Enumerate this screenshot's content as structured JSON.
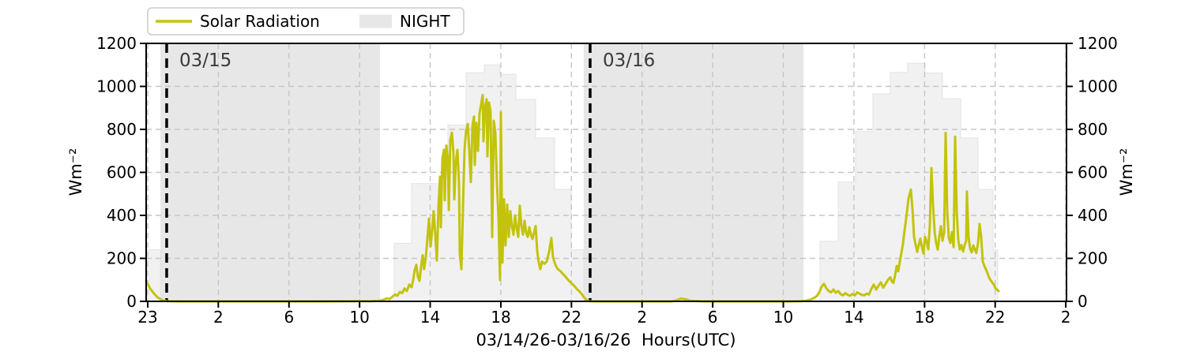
{
  "colors": {
    "radiation_line": "#c3c30c",
    "night_fill": "#e7e7e7",
    "envelope_fill": "#f1f1f1",
    "envelope_edge": "#e3e3e3",
    "grid": "#c6c6c6",
    "frame": "#000000",
    "vline": "#000000",
    "day_label_text": "#3a3a3a",
    "legend_border": "#cbcbcb",
    "background": "#ffffff"
  },
  "legend": {
    "items": [
      {
        "label": "Solar Radiation",
        "type": "line",
        "color": "#c3c30c"
      },
      {
        "label": "NIGHT",
        "type": "patch",
        "color": "#e7e7e7"
      }
    ]
  },
  "chart_data": {
    "type": "line",
    "title": "",
    "xlabel": "03/14/26-03/16/26  Hours(UTC)",
    "ylabel": "Wm⁻²",
    "ylabel_right": "Wm⁻²",
    "ylim": [
      0,
      1200
    ],
    "yticks": [
      0,
      200,
      400,
      600,
      800,
      1000,
      1200
    ],
    "x_unit": "fraction of x-axis width (0 = left edge, 1 = right edge); tick labels are hours UTC from 03/14/26 23:00 to 03/17/26 02:00",
    "grid": "dashed, both axes",
    "legend_position": "upper left, outside axes",
    "xticks": [
      {
        "f": 0.0017,
        "label": "23"
      },
      {
        "f": 0.0784,
        "label": "2"
      },
      {
        "f": 0.1552,
        "label": "6"
      },
      {
        "f": 0.2319,
        "label": "10"
      },
      {
        "f": 0.3086,
        "label": "14"
      },
      {
        "f": 0.3854,
        "label": "18"
      },
      {
        "f": 0.4621,
        "label": "22"
      },
      {
        "f": 0.5388,
        "label": "2"
      },
      {
        "f": 0.6156,
        "label": "6"
      },
      {
        "f": 0.6923,
        "label": "10"
      },
      {
        "f": 0.769,
        "label": "14"
      },
      {
        "f": 0.8458,
        "label": "18"
      },
      {
        "f": 0.9225,
        "label": "22"
      },
      {
        "f": 0.9992,
        "label": "2"
      }
    ],
    "night_regions": [
      {
        "f0": 0.0155,
        "f1": 0.2541
      },
      {
        "f0": 0.4755,
        "f1": 0.7142
      }
    ],
    "date_markers": [
      {
        "f": 0.0223,
        "label": "03/15"
      },
      {
        "f": 0.4824,
        "label": "03/16"
      }
    ],
    "series": [
      {
        "name": "clear-sky-envelope",
        "style": "stepped area, light gray, hourly values in Wm⁻²",
        "segments": [
          [
            [
              0.0,
              0.0155,
              240
            ]
          ],
          [
            [
              0.2695,
              0.2884,
              270
            ],
            [
              0.2884,
              0.3279,
              548
            ],
            [
              0.3279,
              0.3476,
              820
            ],
            [
              0.3476,
              0.3674,
              1063
            ],
            [
              0.3674,
              0.3845,
              1100
            ],
            [
              0.3845,
              0.4017,
              1056
            ],
            [
              0.4017,
              0.4232,
              939
            ],
            [
              0.4232,
              0.4438,
              760
            ],
            [
              0.4438,
              0.4618,
              521
            ],
            [
              0.4618,
              0.4755,
              240
            ]
          ],
          [
            [
              0.7322,
              0.7519,
              280
            ],
            [
              0.7519,
              0.7708,
              555
            ],
            [
              0.7708,
              0.7897,
              790
            ],
            [
              0.7897,
              0.8086,
              965
            ],
            [
              0.8086,
              0.8274,
              1065
            ],
            [
              0.8274,
              0.8463,
              1108
            ],
            [
              0.8463,
              0.8652,
              1062
            ],
            [
              0.8652,
              0.885,
              943
            ],
            [
              0.885,
              0.9039,
              760
            ],
            [
              0.9039,
              0.9202,
              521
            ],
            [
              0.9202,
              0.9253,
              240
            ]
          ]
        ]
      },
      {
        "name": "Solar Radiation",
        "style": "line, Wm⁻², points are [x-fraction, value]",
        "points": [
          [
            0.0,
            95
          ],
          [
            0.0043,
            60
          ],
          [
            0.0086,
            36
          ],
          [
            0.0129,
            17
          ],
          [
            0.0172,
            6
          ],
          [
            0.0223,
            1
          ],
          [
            0.0386,
            0
          ],
          [
            0.0987,
            0
          ],
          [
            0.1845,
            0
          ],
          [
            0.2446,
            1
          ],
          [
            0.2532,
            3
          ],
          [
            0.2584,
            8
          ],
          [
            0.2618,
            14
          ],
          [
            0.2644,
            10
          ],
          [
            0.267,
            20
          ],
          [
            0.2704,
            32
          ],
          [
            0.273,
            26
          ],
          [
            0.2756,
            44
          ],
          [
            0.2782,
            38
          ],
          [
            0.2807,
            60
          ],
          [
            0.2833,
            48
          ],
          [
            0.2859,
            78
          ],
          [
            0.2884,
            66
          ],
          [
            0.2901,
            100
          ],
          [
            0.2918,
            145
          ],
          [
            0.2936,
            170
          ],
          [
            0.2953,
            115
          ],
          [
            0.297,
            95
          ],
          [
            0.2987,
            160
          ],
          [
            0.3004,
            215
          ],
          [
            0.3021,
            150
          ],
          [
            0.3039,
            205
          ],
          [
            0.3056,
            290
          ],
          [
            0.3073,
            385
          ],
          [
            0.309,
            255
          ],
          [
            0.3107,
            330
          ],
          [
            0.3124,
            420
          ],
          [
            0.3142,
            310
          ],
          [
            0.3159,
            190
          ],
          [
            0.3176,
            440
          ],
          [
            0.3193,
            580
          ],
          [
            0.3202,
            345
          ],
          [
            0.3219,
            665
          ],
          [
            0.3236,
            705
          ],
          [
            0.3245,
            470
          ],
          [
            0.3262,
            725
          ],
          [
            0.3279,
            655
          ],
          [
            0.3288,
            425
          ],
          [
            0.3305,
            750
          ],
          [
            0.3322,
            785
          ],
          [
            0.3339,
            690
          ],
          [
            0.3348,
            475
          ],
          [
            0.3365,
            645
          ],
          [
            0.3382,
            705
          ],
          [
            0.3399,
            555
          ],
          [
            0.3408,
            225
          ],
          [
            0.3425,
            150
          ],
          [
            0.3442,
            430
          ],
          [
            0.3459,
            705
          ],
          [
            0.3476,
            795
          ],
          [
            0.3494,
            825
          ],
          [
            0.3511,
            700
          ],
          [
            0.3528,
            555
          ],
          [
            0.3545,
            815
          ],
          [
            0.3562,
            860
          ],
          [
            0.3571,
            635
          ],
          [
            0.3588,
            830
          ],
          [
            0.3605,
            700
          ],
          [
            0.3622,
            875
          ],
          [
            0.3639,
            915
          ],
          [
            0.3657,
            960
          ],
          [
            0.3665,
            745
          ],
          [
            0.3682,
            905
          ],
          [
            0.37,
            940
          ],
          [
            0.3708,
            675
          ],
          [
            0.3725,
            925
          ],
          [
            0.3742,
            885
          ],
          [
            0.376,
            300
          ],
          [
            0.3777,
            840
          ],
          [
            0.3794,
            785
          ],
          [
            0.3811,
            555
          ],
          [
            0.3828,
            385
          ],
          [
            0.3845,
            100
          ],
          [
            0.3854,
            880
          ],
          [
            0.3871,
            180
          ],
          [
            0.3888,
            475
          ],
          [
            0.3905,
            260
          ],
          [
            0.3923,
            450
          ],
          [
            0.394,
            300
          ],
          [
            0.3957,
            420
          ],
          [
            0.3974,
            350
          ],
          [
            0.3991,
            310
          ],
          [
            0.4009,
            400
          ],
          [
            0.4026,
            340
          ],
          [
            0.4043,
            300
          ],
          [
            0.406,
            445
          ],
          [
            0.4077,
            350
          ],
          [
            0.4094,
            310
          ],
          [
            0.4112,
            375
          ],
          [
            0.4129,
            320
          ],
          [
            0.4146,
            300
          ],
          [
            0.4163,
            345
          ],
          [
            0.418,
            310
          ],
          [
            0.4197,
            290
          ],
          [
            0.4215,
            320
          ],
          [
            0.4232,
            350
          ],
          [
            0.4249,
            235
          ],
          [
            0.4266,
            180
          ],
          [
            0.4283,
            150
          ],
          [
            0.43,
            185
          ],
          [
            0.4326,
            175
          ],
          [
            0.4352,
            185
          ],
          [
            0.4378,
            230
          ],
          [
            0.4403,
            295
          ],
          [
            0.4421,
            205
          ],
          [
            0.4446,
            170
          ],
          [
            0.4472,
            150
          ],
          [
            0.4498,
            142
          ],
          [
            0.4524,
            130
          ],
          [
            0.4549,
            118
          ],
          [
            0.4575,
            105
          ],
          [
            0.4601,
            92
          ],
          [
            0.4627,
            83
          ],
          [
            0.4652,
            72
          ],
          [
            0.4678,
            58
          ],
          [
            0.4704,
            48
          ],
          [
            0.473,
            36
          ],
          [
            0.4755,
            20
          ],
          [
            0.4781,
            8
          ],
          [
            0.4815,
            1
          ],
          [
            0.4936,
            0
          ],
          [
            0.5708,
            0
          ],
          [
            0.576,
            4
          ],
          [
            0.5811,
            13
          ],
          [
            0.5863,
            9
          ],
          [
            0.5914,
            3
          ],
          [
            0.6052,
            0
          ],
          [
            0.6996,
            0
          ],
          [
            0.7116,
            1
          ],
          [
            0.7167,
            3
          ],
          [
            0.7219,
            8
          ],
          [
            0.7253,
            15
          ],
          [
            0.7288,
            25
          ],
          [
            0.7313,
            42
          ],
          [
            0.7339,
            68
          ],
          [
            0.7365,
            82
          ],
          [
            0.7391,
            60
          ],
          [
            0.7416,
            48
          ],
          [
            0.7442,
            42
          ],
          [
            0.7468,
            55
          ],
          [
            0.7494,
            40
          ],
          [
            0.7519,
            48
          ],
          [
            0.7545,
            34
          ],
          [
            0.7571,
            28
          ],
          [
            0.7597,
            38
          ],
          [
            0.7622,
            30
          ],
          [
            0.7648,
            26
          ],
          [
            0.7674,
            34
          ],
          [
            0.77,
            28
          ],
          [
            0.7725,
            42
          ],
          [
            0.7751,
            36
          ],
          [
            0.7777,
            30
          ],
          [
            0.7803,
            28
          ],
          [
            0.7829,
            36
          ],
          [
            0.7854,
            32
          ],
          [
            0.788,
            58
          ],
          [
            0.7906,
            78
          ],
          [
            0.7932,
            55
          ],
          [
            0.7957,
            72
          ],
          [
            0.7983,
            88
          ],
          [
            0.8009,
            64
          ],
          [
            0.8035,
            82
          ],
          [
            0.806,
            100
          ],
          [
            0.8086,
            112
          ],
          [
            0.8103,
            92
          ],
          [
            0.812,
            86
          ],
          [
            0.8137,
            122
          ],
          [
            0.8155,
            165
          ],
          [
            0.8172,
            140
          ],
          [
            0.8189,
            185
          ],
          [
            0.8206,
            225
          ],
          [
            0.8223,
            268
          ],
          [
            0.824,
            330
          ],
          [
            0.8258,
            388
          ],
          [
            0.8283,
            478
          ],
          [
            0.8309,
            520
          ],
          [
            0.8326,
            430
          ],
          [
            0.8343,
            302
          ],
          [
            0.8361,
            262
          ],
          [
            0.8378,
            230
          ],
          [
            0.8395,
            262
          ],
          [
            0.8412,
            292
          ],
          [
            0.8429,
            252
          ],
          [
            0.8446,
            222
          ],
          [
            0.8463,
            300
          ],
          [
            0.8481,
            278
          ],
          [
            0.8498,
            242
          ],
          [
            0.8515,
            352
          ],
          [
            0.8532,
            620
          ],
          [
            0.8549,
            452
          ],
          [
            0.8567,
            322
          ],
          [
            0.8584,
            272
          ],
          [
            0.8601,
            240
          ],
          [
            0.8618,
            302
          ],
          [
            0.8635,
            350
          ],
          [
            0.8652,
            282
          ],
          [
            0.867,
            320
          ],
          [
            0.8687,
            784
          ],
          [
            0.8704,
            420
          ],
          [
            0.8721,
            295
          ],
          [
            0.8738,
            272
          ],
          [
            0.8755,
            322
          ],
          [
            0.8773,
            252
          ],
          [
            0.879,
            766
          ],
          [
            0.8807,
            420
          ],
          [
            0.8824,
            285
          ],
          [
            0.8841,
            242
          ],
          [
            0.8858,
            262
          ],
          [
            0.8876,
            232
          ],
          [
            0.8893,
            260
          ],
          [
            0.891,
            282
          ],
          [
            0.8918,
            511
          ],
          [
            0.8936,
            300
          ],
          [
            0.8953,
            245
          ],
          [
            0.897,
            228
          ],
          [
            0.8987,
            260
          ],
          [
            0.9004,
            240
          ],
          [
            0.9021,
            225
          ],
          [
            0.9039,
            270
          ],
          [
            0.9056,
            360
          ],
          [
            0.9073,
            300
          ],
          [
            0.909,
            185
          ],
          [
            0.9107,
            165
          ],
          [
            0.9124,
            150
          ],
          [
            0.9141,
            132
          ],
          [
            0.9158,
            112
          ],
          [
            0.9176,
            98
          ],
          [
            0.9193,
            88
          ],
          [
            0.921,
            78
          ],
          [
            0.9227,
            62
          ],
          [
            0.9262,
            48
          ]
        ]
      }
    ]
  }
}
